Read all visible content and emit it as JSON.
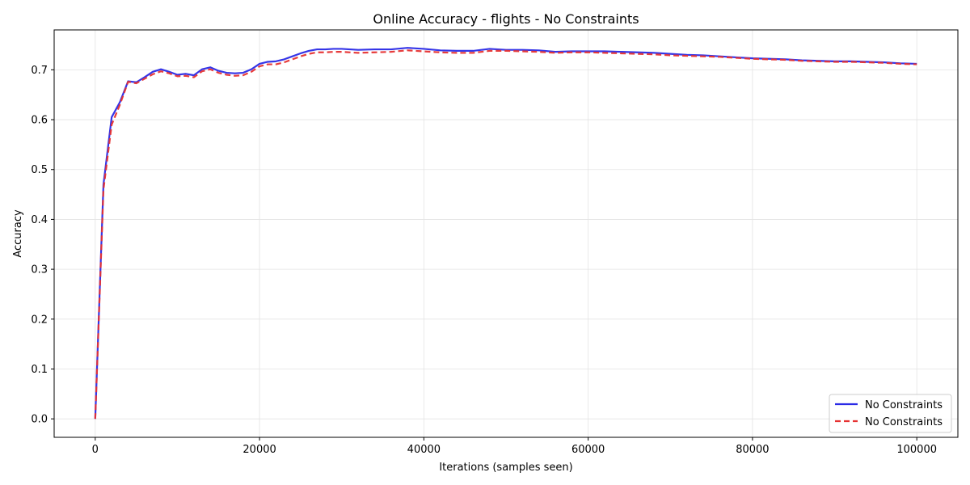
{
  "chart_data": {
    "type": "line",
    "title": "Online Accuracy - flights - No Constraints",
    "xlabel": "Iterations (samples seen)",
    "ylabel": "Accuracy",
    "xlim": [
      -5000,
      105000
    ],
    "ylim": [
      -0.037,
      0.78
    ],
    "xticks": [
      0,
      20000,
      40000,
      60000,
      80000,
      100000
    ],
    "xtick_labels": [
      "0",
      "20000",
      "40000",
      "60000",
      "80000",
      "100000"
    ],
    "yticks": [
      0.0,
      0.1,
      0.2,
      0.3,
      0.4,
      0.5,
      0.6,
      0.7
    ],
    "ytick_labels": [
      "0.0",
      "0.1",
      "0.2",
      "0.3",
      "0.4",
      "0.5",
      "0.6",
      "0.7"
    ],
    "grid": true,
    "legend_position": "lower-right",
    "colors": {
      "series1": "#2a2ae6",
      "series2": "#e63232"
    },
    "series": [
      {
        "name": "No Constraints",
        "style": "solid",
        "x": [
          0,
          1000,
          2000,
          3000,
          4000,
          5000,
          6000,
          7000,
          8000,
          9000,
          10000,
          11000,
          12000,
          13000,
          14000,
          15000,
          16000,
          17000,
          18000,
          19000,
          20000,
          21000,
          22000,
          23000,
          24000,
          25000,
          26000,
          27000,
          28000,
          29000,
          30000,
          32000,
          34000,
          36000,
          38000,
          40000,
          42000,
          44000,
          46000,
          48000,
          50000,
          52000,
          54000,
          56000,
          58000,
          60000,
          62000,
          64000,
          66000,
          68000,
          70000,
          72000,
          74000,
          76000,
          78000,
          80000,
          82000,
          84000,
          86000,
          88000,
          90000,
          92000,
          94000,
          96000,
          98000,
          100000
        ],
        "y": [
          0.0,
          0.47,
          0.605,
          0.635,
          0.677,
          0.675,
          0.685,
          0.696,
          0.701,
          0.696,
          0.69,
          0.692,
          0.689,
          0.701,
          0.705,
          0.698,
          0.694,
          0.693,
          0.694,
          0.701,
          0.712,
          0.716,
          0.717,
          0.721,
          0.727,
          0.733,
          0.738,
          0.741,
          0.741,
          0.742,
          0.742,
          0.74,
          0.741,
          0.741,
          0.744,
          0.742,
          0.739,
          0.738,
          0.738,
          0.742,
          0.74,
          0.74,
          0.739,
          0.736,
          0.737,
          0.737,
          0.737,
          0.736,
          0.735,
          0.734,
          0.732,
          0.73,
          0.729,
          0.727,
          0.725,
          0.723,
          0.722,
          0.721,
          0.719,
          0.718,
          0.717,
          0.717,
          0.716,
          0.715,
          0.713,
          0.712
        ]
      },
      {
        "name": "No Constraints",
        "style": "dashed",
        "x": [
          0,
          1000,
          2000,
          3000,
          4000,
          5000,
          6000,
          7000,
          8000,
          9000,
          10000,
          11000,
          12000,
          13000,
          14000,
          15000,
          16000,
          17000,
          18000,
          19000,
          20000,
          21000,
          22000,
          23000,
          24000,
          25000,
          26000,
          27000,
          28000,
          29000,
          30000,
          32000,
          34000,
          36000,
          38000,
          40000,
          42000,
          44000,
          46000,
          48000,
          50000,
          52000,
          54000,
          56000,
          58000,
          60000,
          62000,
          64000,
          66000,
          68000,
          70000,
          72000,
          74000,
          76000,
          78000,
          80000,
          82000,
          84000,
          86000,
          88000,
          90000,
          92000,
          94000,
          96000,
          98000,
          100000
        ],
        "y": [
          0.0,
          0.46,
          0.59,
          0.63,
          0.676,
          0.673,
          0.682,
          0.691,
          0.697,
          0.693,
          0.687,
          0.688,
          0.685,
          0.697,
          0.701,
          0.694,
          0.69,
          0.688,
          0.689,
          0.696,
          0.707,
          0.711,
          0.711,
          0.715,
          0.721,
          0.727,
          0.732,
          0.735,
          0.735,
          0.736,
          0.736,
          0.734,
          0.735,
          0.736,
          0.739,
          0.737,
          0.735,
          0.734,
          0.734,
          0.738,
          0.738,
          0.737,
          0.736,
          0.734,
          0.735,
          0.735,
          0.734,
          0.733,
          0.732,
          0.731,
          0.729,
          0.728,
          0.727,
          0.726,
          0.724,
          0.722,
          0.721,
          0.72,
          0.718,
          0.717,
          0.716,
          0.716,
          0.715,
          0.714,
          0.712,
          0.711
        ]
      }
    ]
  }
}
